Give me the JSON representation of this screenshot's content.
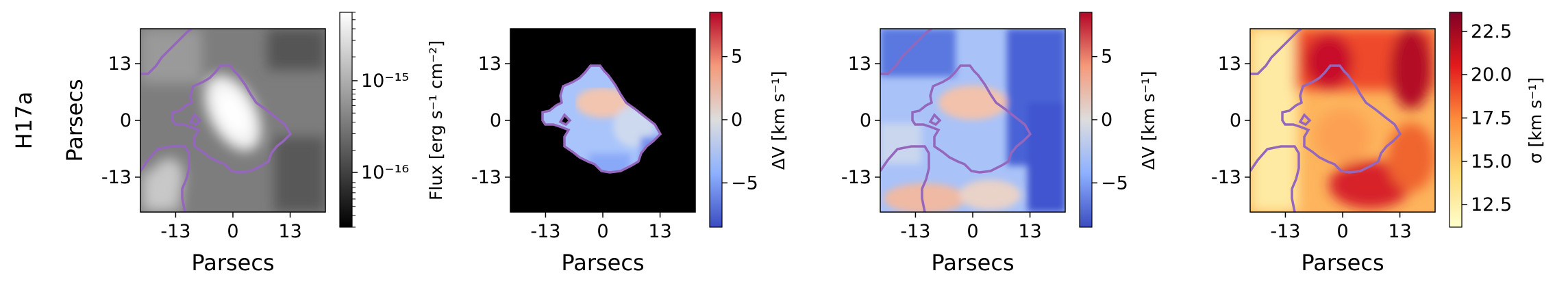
{
  "row_label": "H17a",
  "chart_data": [
    {
      "type": "heatmap",
      "panel": "flux",
      "xlabel": "Parsecs",
      "ylabel": "Parsecs",
      "xticks": [
        -13,
        0,
        13
      ],
      "xtick_labels": [
        "-13",
        "0",
        "13"
      ],
      "yticks": [
        13,
        0,
        -13
      ],
      "ytick_labels": [
        "13",
        "0",
        "-13"
      ],
      "xlim": [
        -21,
        21
      ],
      "ylim": [
        -21,
        21
      ],
      "colormap": "gray",
      "colorbar": {
        "label": "Flux [erg s⁻¹ cm⁻²]",
        "scale": "log",
        "range": [
          3e-17,
          6e-15
        ],
        "major_ticks": [
          "10⁻¹⁵",
          "10⁻¹⁶"
        ],
        "major_values": [
          1e-15,
          1e-16
        ]
      },
      "contour_color": "#9467bd"
    },
    {
      "type": "heatmap",
      "panel": "velocity-masked",
      "xlabel": "Parsecs",
      "ylabel": "",
      "xticks": [
        -13,
        0,
        13
      ],
      "xtick_labels": [
        "-13",
        "0",
        "13"
      ],
      "yticks": [
        13,
        0,
        -13
      ],
      "ytick_labels": [
        "13",
        "0",
        "-13"
      ],
      "xlim": [
        -21,
        21
      ],
      "ylim": [
        -21,
        21
      ],
      "colormap": "coolwarm",
      "masked_background": "#000000",
      "colorbar": {
        "label": "ΔV [km s⁻¹]",
        "scale": "linear",
        "range": [
          -8.5,
          8.5
        ],
        "ticks": [
          5,
          0,
          -5
        ],
        "tick_labels": [
          "5",
          "0",
          "−5"
        ]
      },
      "contour_color": "#9467bd"
    },
    {
      "type": "heatmap",
      "panel": "velocity-full",
      "xlabel": "Parsecs",
      "ylabel": "",
      "xticks": [
        -13,
        0,
        13
      ],
      "xtick_labels": [
        "-13",
        "0",
        "13"
      ],
      "yticks": [
        13,
        0,
        -13
      ],
      "ytick_labels": [
        "13",
        "0",
        "-13"
      ],
      "xlim": [
        -21,
        21
      ],
      "ylim": [
        -21,
        21
      ],
      "colormap": "coolwarm",
      "colorbar": {
        "label": "ΔV [km s⁻¹]",
        "scale": "linear",
        "range": [
          -8.5,
          8.5
        ],
        "ticks": [
          5,
          0,
          -5
        ],
        "tick_labels": [
          "5",
          "0",
          "−5"
        ]
      },
      "contour_color": "#9467bd"
    },
    {
      "type": "heatmap",
      "panel": "dispersion",
      "xlabel": "Parsecs",
      "ylabel": "",
      "xticks": [
        -13,
        0,
        13
      ],
      "xtick_labels": [
        "-13",
        "0",
        "13"
      ],
      "yticks": [
        13,
        0,
        -13
      ],
      "ytick_labels": [
        "13",
        "0",
        "-13"
      ],
      "xlim": [
        -21,
        21
      ],
      "ylim": [
        -21,
        21
      ],
      "colormap": "YlOrRd",
      "colorbar": {
        "label": "σ [km s⁻¹]",
        "scale": "linear",
        "range": [
          11.2,
          23.6
        ],
        "ticks": [
          22.5,
          20.0,
          17.5,
          15.0,
          12.5
        ],
        "tick_labels": [
          "22.5",
          "20.0",
          "17.5",
          "15.0",
          "12.5"
        ]
      },
      "contour_color": "#9467bd"
    }
  ]
}
